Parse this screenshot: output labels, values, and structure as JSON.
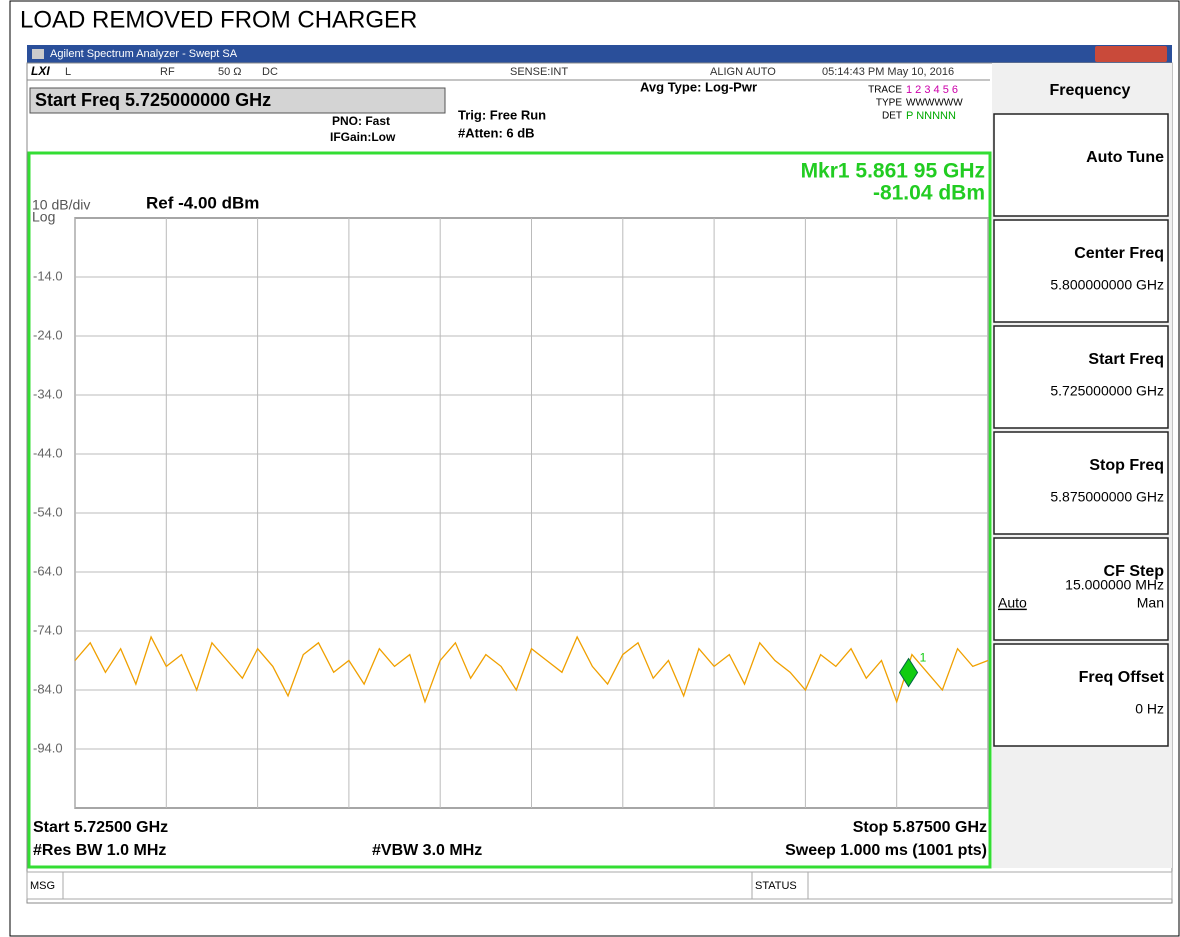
{
  "page_title": "LOAD REMOVED FROM CHARGER",
  "window_title": "Agilent Spectrum Analyzer - Swept SA",
  "header": {
    "input": "L",
    "rf": "RF",
    "impedance": "50 Ω",
    "coupling": "DC",
    "sense": "SENSE:INT",
    "align": "ALIGN AUTO",
    "datetime": "05:14:43 PM May 10, 2016",
    "active_function": "Start Freq 5.725000000 GHz",
    "pno": "PNO: Fast",
    "ifgain": "IFGain:Low",
    "trig": "Trig: Free Run",
    "atten": "#Atten: 6 dB",
    "avg_type": "Avg Type: Log-Pwr",
    "trace_label": "TRACE",
    "trace_nums": "1 2 3 4 5 6",
    "type_label": "TYPE",
    "type_value": "WWWWWW",
    "det_label": "DET",
    "det_value": "P NNNNN"
  },
  "softkeys": {
    "menu": "Frequency",
    "items": [
      {
        "label": "Auto Tune"
      },
      {
        "label": "Center Freq",
        "value": "5.800000000 GHz"
      },
      {
        "label": "Start Freq",
        "value": "5.725000000 GHz"
      },
      {
        "label": "Stop Freq",
        "value": "5.875000000 GHz"
      },
      {
        "label": "CF Step",
        "value": "15.000000 MHz",
        "options": [
          "Auto",
          "Man"
        ]
      },
      {
        "label": "Freq Offset",
        "value": "0 Hz"
      }
    ]
  },
  "status_bar": {
    "msg": "MSG",
    "status": "STATUS"
  },
  "chart_data": {
    "type": "line",
    "scale_label": "10 dB/div",
    "scale_type": "Log",
    "ref_label": "Ref -4.00 dBm",
    "marker_freq": "Mkr1 5.861 95 GHz",
    "marker_level": "-81.04 dBm",
    "marker": {
      "x": 5.86195,
      "y": -81.04,
      "label": "1",
      "color": "#11cc11"
    },
    "start_label": "Start 5.72500 GHz",
    "stop_label": "Stop 5.87500 GHz",
    "rbw_label": "#Res BW 1.0 MHz",
    "vbw_label": "#VBW 3.0 MHz",
    "sweep_label": "Sweep  1.000 ms (1001 pts)",
    "xlim": [
      5.725,
      5.875
    ],
    "ylim": [
      -104,
      -4
    ],
    "xticks": [
      5.725,
      5.74,
      5.755,
      5.77,
      5.785,
      5.8,
      5.815,
      5.83,
      5.845,
      5.86,
      5.875
    ],
    "yticks": [
      {
        "value": -14,
        "label": "-14.0"
      },
      {
        "value": -24,
        "label": "-24.0"
      },
      {
        "value": -34,
        "label": "-34.0"
      },
      {
        "value": -44,
        "label": "-44.0"
      },
      {
        "value": -54,
        "label": "-54.0"
      },
      {
        "value": -64,
        "label": "-64.0"
      },
      {
        "value": -74,
        "label": "-74.0"
      },
      {
        "value": -84,
        "label": "-84.0"
      },
      {
        "value": -94,
        "label": "-94.0"
      }
    ],
    "grid": true,
    "series": [
      {
        "color": "#f0a000",
        "x": [
          5.725,
          5.7275,
          5.73,
          5.7325,
          5.735,
          5.7375,
          5.74,
          5.7425,
          5.745,
          5.7475,
          5.75,
          5.7525,
          5.755,
          5.7575,
          5.76,
          5.7625,
          5.765,
          5.7675,
          5.77,
          5.7725,
          5.775,
          5.7775,
          5.78,
          5.7825,
          5.785,
          5.7875,
          5.79,
          5.7925,
          5.795,
          5.7975,
          5.8,
          5.8025,
          5.805,
          5.8075,
          5.81,
          5.8125,
          5.815,
          5.8175,
          5.82,
          5.8225,
          5.825,
          5.8275,
          5.83,
          5.8325,
          5.835,
          5.8375,
          5.84,
          5.8425,
          5.845,
          5.8475,
          5.85,
          5.8525,
          5.855,
          5.8575,
          5.86,
          5.8625,
          5.865,
          5.8675,
          5.87,
          5.8725,
          5.875
        ],
        "values": [
          -79,
          -76,
          -81,
          -77,
          -83,
          -75,
          -80,
          -78,
          -84,
          -76,
          -79,
          -82,
          -77,
          -80,
          -85,
          -78,
          -76,
          -81,
          -79,
          -83,
          -77,
          -80,
          -78,
          -86,
          -79,
          -76,
          -82,
          -78,
          -80,
          -84,
          -77,
          -79,
          -81,
          -75,
          -80,
          -83,
          -78,
          -76,
          -82,
          -79,
          -85,
          -77,
          -80,
          -78,
          -83,
          -76,
          -79,
          -81,
          -84,
          -78,
          -80,
          -77,
          -82,
          -79,
          -86,
          -78,
          -81,
          -84,
          -77,
          -80,
          -79
        ]
      }
    ]
  }
}
